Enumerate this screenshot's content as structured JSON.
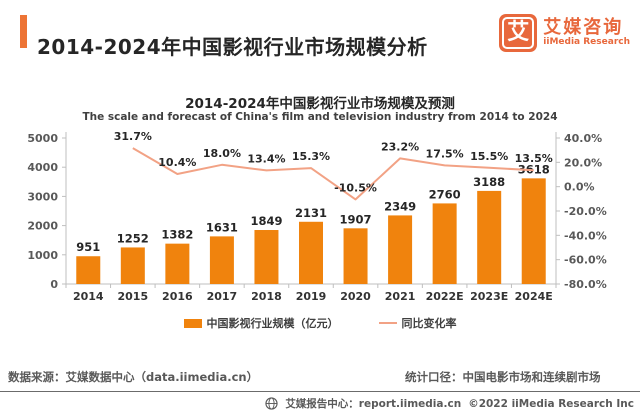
{
  "header": {
    "title": "2014-2024年中国影视行业市场规模分析",
    "logo": {
      "mark": "艾",
      "name_cn": "艾媒咨询",
      "name_en": "iiMedia Research",
      "color": "#E8683C"
    }
  },
  "chart": {
    "title": "2014-2024年中国影视行业市场规模及预测",
    "subtitle": "The scale and forecast of China's film and television industry from 2014 to 2024"
  },
  "chart_data": {
    "type": "bar+line",
    "title": "2014-2024年中国影视行业市场规模及预测",
    "categories": [
      "2014",
      "2015",
      "2016",
      "2017",
      "2018",
      "2019",
      "2020",
      "2021",
      "2022E",
      "2023E",
      "2024E"
    ],
    "series": [
      {
        "name": "中国影视行业规模（亿元）",
        "type": "bar",
        "axis": "left",
        "color": "#F0830D",
        "values": [
          951,
          1252,
          1382,
          1631,
          1849,
          2131,
          1907,
          2349,
          2760,
          3188,
          3618
        ]
      },
      {
        "name": "同比变化率",
        "type": "line",
        "axis": "right",
        "color": "#F2A285",
        "x_start_index": 1,
        "values": [
          31.7,
          10.4,
          18.0,
          13.4,
          15.3,
          -10.5,
          23.2,
          17.5,
          15.5,
          13.5
        ],
        "point_labels": [
          "31.7%",
          "10.4%",
          "18.0%",
          "13.4%",
          "15.3%",
          "-10.5%",
          "23.2%",
          "17.5%",
          "15.5%",
          "13.5%"
        ]
      }
    ],
    "left_axis": {
      "min": 0,
      "max": 5000,
      "tick_labels": [
        "0",
        "1000",
        "2000",
        "3000",
        "4000",
        "5000"
      ]
    },
    "right_axis": {
      "min": -80,
      "max": 40,
      "tick_labels": [
        "40.0%",
        "20.0%",
        "0.0%",
        "-20.0%",
        "-40.0%",
        "-60.0%",
        "-80.0%"
      ]
    },
    "grid": false,
    "legend_position": "bottom"
  },
  "footer": {
    "source": "数据来源：艾媒数据中心（data.iimedia.cn）",
    "scope": "统计口径：中国电影市场和连续剧市场",
    "report_center": "艾媒报告中心：report.iimedia.cn",
    "copyright": "©2022  iiMedia Research  Inc"
  }
}
